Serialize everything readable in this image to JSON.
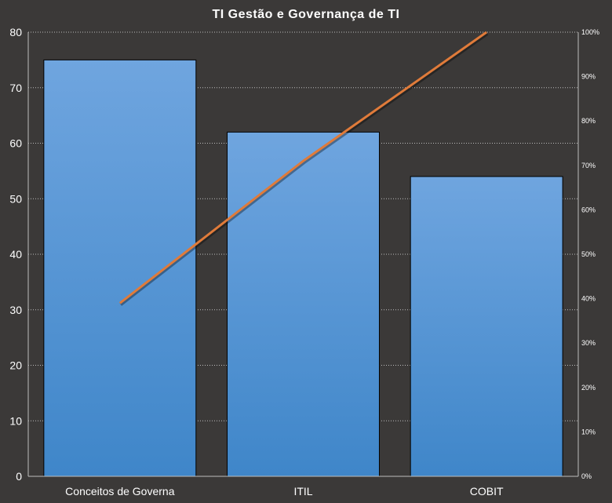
{
  "chart_data": {
    "type": "bar",
    "title": "TI Gestão  e Governança  de TI",
    "categories": [
      "Conceitos de Governa",
      "ITIL",
      "COBIT"
    ],
    "series": [
      {
        "type": "bar",
        "axis": "left",
        "values": [
          75,
          62,
          54
        ]
      },
      {
        "type": "line",
        "axis": "right",
        "values": [
          39,
          71,
          100
        ]
      }
    ],
    "xlabel": "",
    "ylabel": "",
    "ylim": [
      0,
      80
    ],
    "y_ticks": [
      "0",
      "10",
      "20",
      "30",
      "40",
      "50",
      "60",
      "70",
      "80"
    ],
    "y2lim": [
      0,
      100
    ],
    "y2_ticks": [
      "0%",
      "10%",
      "20%",
      "30%",
      "40%",
      "50%",
      "60%",
      "70%",
      "80%",
      "90%",
      "100%"
    ],
    "grid": true,
    "legend": "none",
    "colors": {
      "background": "#3b3938",
      "bar_top": "#6fa5df",
      "bar_bottom": "#3f86c9",
      "line": "#e07b3a",
      "grid": "#bdbdbd",
      "text": "#ffffff"
    }
  }
}
